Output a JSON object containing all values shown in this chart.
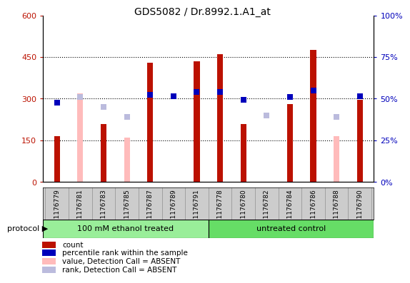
{
  "title": "GDS5082 / Dr.8992.1.A1_at",
  "samples": [
    "GSM1176779",
    "GSM1176781",
    "GSM1176783",
    "GSM1176785",
    "GSM1176787",
    "GSM1176789",
    "GSM1176791",
    "GSM1176778",
    "GSM1176780",
    "GSM1176782",
    "GSM1176784",
    "GSM1176786",
    "GSM1176788",
    "GSM1176790"
  ],
  "count": [
    165,
    0,
    210,
    0,
    430,
    0,
    435,
    460,
    210,
    0,
    280,
    475,
    0,
    295
  ],
  "value_absent": [
    0,
    320,
    0,
    160,
    0,
    0,
    0,
    0,
    0,
    0,
    0,
    0,
    165,
    0
  ],
  "rank_absent_y": [
    0,
    305,
    270,
    235,
    0,
    0,
    0,
    0,
    0,
    240,
    0,
    0,
    235,
    0
  ],
  "percentile_rank_y": [
    285,
    0,
    0,
    0,
    315,
    310,
    325,
    325,
    295,
    0,
    305,
    330,
    0,
    310
  ],
  "group1_label": "100 mM ethanol treated",
  "group2_label": "untreated control",
  "group1_count": 7,
  "group2_count": 7,
  "ylim_left": [
    0,
    600
  ],
  "yticks_left": [
    0,
    150,
    300,
    450,
    600
  ],
  "yticks_right": [
    0,
    25,
    50,
    75,
    100
  ],
  "color_count": "#bb1100",
  "color_value_absent": "#ffbbbb",
  "color_rank_absent": "#bbbbdd",
  "color_percentile": "#0000bb",
  "color_group1_bg": "#99ee99",
  "color_group2_bg": "#66dd66",
  "color_xtick_bg": "#cccccc",
  "figsize": [
    5.58,
    3.93
  ],
  "dpi": 100
}
